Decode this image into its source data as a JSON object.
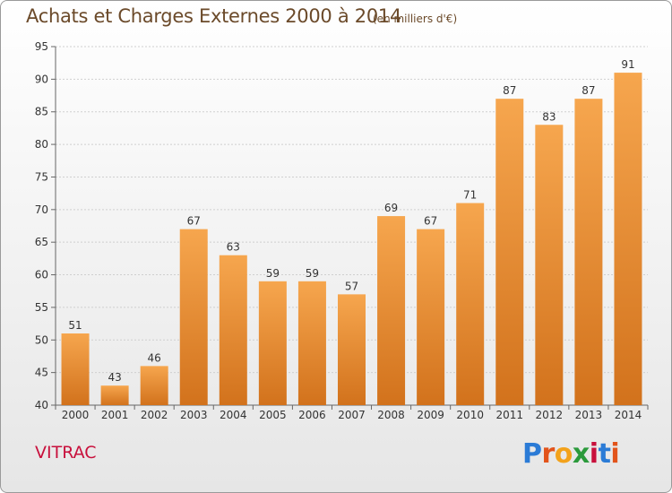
{
  "header": {
    "title": "Achats et Charges Externes 2000 à 2014",
    "unit_note": "(en milliers d'€)"
  },
  "footer": {
    "commune": "VITRAC",
    "brand": {
      "letters": [
        "P",
        "r",
        "o",
        "x",
        "i",
        "t",
        "i"
      ],
      "colors": [
        "#2b7bd6",
        "#e2541b",
        "#f3a21b",
        "#2b9a3b",
        "#c8103c",
        "#2b7bd6",
        "#e2541b"
      ]
    }
  },
  "colors": {
    "bar_light": "#f6a64e",
    "bar_dark": "#d2721c",
    "title": "#6b4a2a",
    "commune": "#c8103c"
  },
  "chart_data": {
    "type": "bar",
    "title": "Achats et Charges Externes 2000 à 2014",
    "subtitle": "(en milliers d'€)",
    "xlabel": "",
    "ylabel": "",
    "categories": [
      "2000",
      "2001",
      "2002",
      "2003",
      "2004",
      "2005",
      "2006",
      "2007",
      "2008",
      "2009",
      "2010",
      "2011",
      "2012",
      "2013",
      "2014"
    ],
    "values": [
      51,
      43,
      46,
      67,
      63,
      59,
      59,
      57,
      69,
      67,
      71,
      87,
      83,
      87,
      91
    ],
    "ylim": [
      40,
      95
    ],
    "yticks": [
      40,
      45,
      50,
      55,
      60,
      65,
      70,
      75,
      80,
      85,
      90,
      95
    ],
    "grid": true,
    "legend": "none"
  }
}
